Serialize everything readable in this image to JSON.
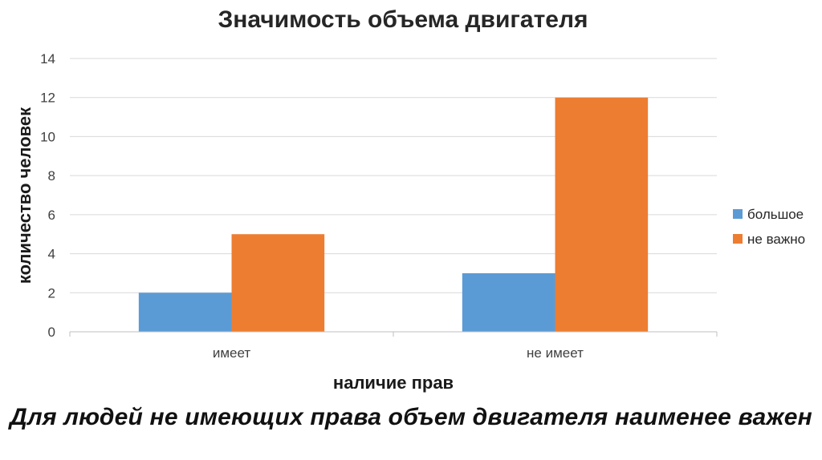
{
  "chart_data": {
    "type": "bar",
    "title": "Значимость объема двигателя",
    "xlabel": "наличие прав",
    "ylabel": "количество человек",
    "categories": [
      "имеет",
      "не имеет"
    ],
    "series": [
      {
        "name": "большое",
        "values": [
          2,
          3
        ],
        "color": "#5B9BD5"
      },
      {
        "name": "не важно",
        "values": [
          5,
          12
        ],
        "color": "#ED7D31"
      }
    ],
    "ylim": [
      0,
      14
    ],
    "yticks": [
      0,
      2,
      4,
      6,
      8,
      10,
      12,
      14
    ],
    "grid": true,
    "legend_position": "right"
  },
  "caption": "Для людей не имеющих права объем двигателя наименее важен"
}
